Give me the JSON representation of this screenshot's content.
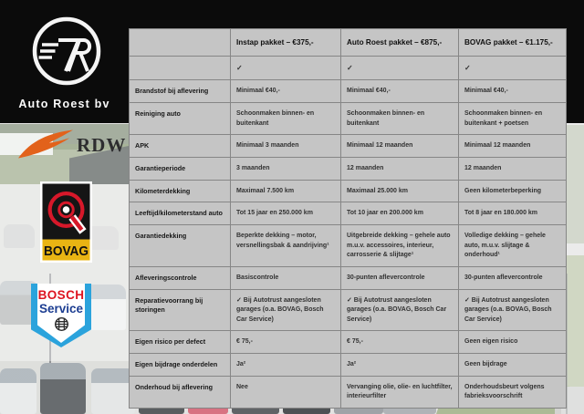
{
  "brand": {
    "name": "Auto Roest bv",
    "monogram": "7R"
  },
  "logos": {
    "rdw_text": "RDW",
    "bovag_text": "BOVAG",
    "bosch_line1": "BOSCH",
    "bosch_line2": "Service"
  },
  "table": {
    "columns": [
      "",
      "Instap pakket – €375,-",
      "Auto Roest pakket – €875,-",
      "BOVAG pakket – €1.175,-"
    ],
    "rows": [
      {
        "label": "",
        "values": [
          "✓",
          "✓",
          "✓"
        ]
      },
      {
        "label": "Brandstof bij aflevering",
        "values": [
          "Minimaal €40,-",
          "Minimaal €40,-",
          "Minimaal €40,-"
        ]
      },
      {
        "label": "Reiniging auto",
        "values": [
          "Schoonmaken binnen- en buitenkant",
          "Schoonmaken binnen- en buitenkant",
          "Schoonmaken binnen- en buitenkant + poetsen"
        ]
      },
      {
        "label": "APK",
        "values": [
          "Minimaal 3 maanden",
          "Minimaal 12 maanden",
          "Minimaal 12 maanden"
        ]
      },
      {
        "label": "Garantieperiode",
        "values": [
          "3 maanden",
          "12 maanden",
          "12 maanden"
        ]
      },
      {
        "label": "Kilometerdekking",
        "values": [
          "Maximaal 7.500 km",
          "Maximaal 25.000 km",
          "Geen kilometerbeperking"
        ]
      },
      {
        "label": "Leeftijd/kilometerstand auto",
        "values": [
          "Tot 15 jaar en 250.000 km",
          "Tot 10 jaar en 200.000 km",
          "Tot 8 jaar en 180.000 km"
        ]
      },
      {
        "label": "Garantiedekking",
        "values": [
          "Beperkte dekking – motor, versnellingsbak & aandrijving¹",
          "Uitgebreide dekking – gehele auto m.u.v. accessoires, interieur, carrosserie & slijtage¹",
          "Volledige dekking – gehele auto, m.u.v. slijtage & onderhoud¹"
        ]
      },
      {
        "label": "Afleveringscontrole",
        "values": [
          "Basiscontrole",
          "30-punten aflevercontrole",
          "30-punten aflevercontrole"
        ]
      },
      {
        "label": "Reparatievoorrang bij storingen",
        "values": [
          "✓ Bij Autotrust aangesloten garages (o.a. BOVAG, Bosch Car Service)",
          "✓ Bij Autotrust aangesloten garages (o.a. BOVAG, Bosch Car Service)",
          "✓ Bij Autotrust aangesloten garages (o.a. BOVAG, Bosch Car Service)"
        ]
      },
      {
        "label": "Eigen risico per defect",
        "values": [
          "€ 75,-",
          "€ 75,-",
          "Geen eigen risico"
        ]
      },
      {
        "label": "Eigen bijdrage onderdelen",
        "values": [
          "Ja²",
          "Ja²",
          "Geen bijdrage"
        ]
      },
      {
        "label": "Onderhoud bij aflevering",
        "values": [
          "Nee",
          "Vervanging olie, olie- en luchtfilter, interieurfilter",
          "Onderhoudsbeurt volgens fabrieksvoorschrift"
        ]
      }
    ]
  },
  "colors": {
    "band_black": "#0b0b0b",
    "table_cell": "#c5c5c5",
    "table_border": "#868686",
    "rdw_orange": "#e2621b",
    "bovag_red": "#d7182a",
    "bovag_yellow": "#e9b413",
    "bosch_red": "#dd1420",
    "bosch_blue": "#2ba3dc",
    "bosch_navy": "#1d3e92"
  }
}
